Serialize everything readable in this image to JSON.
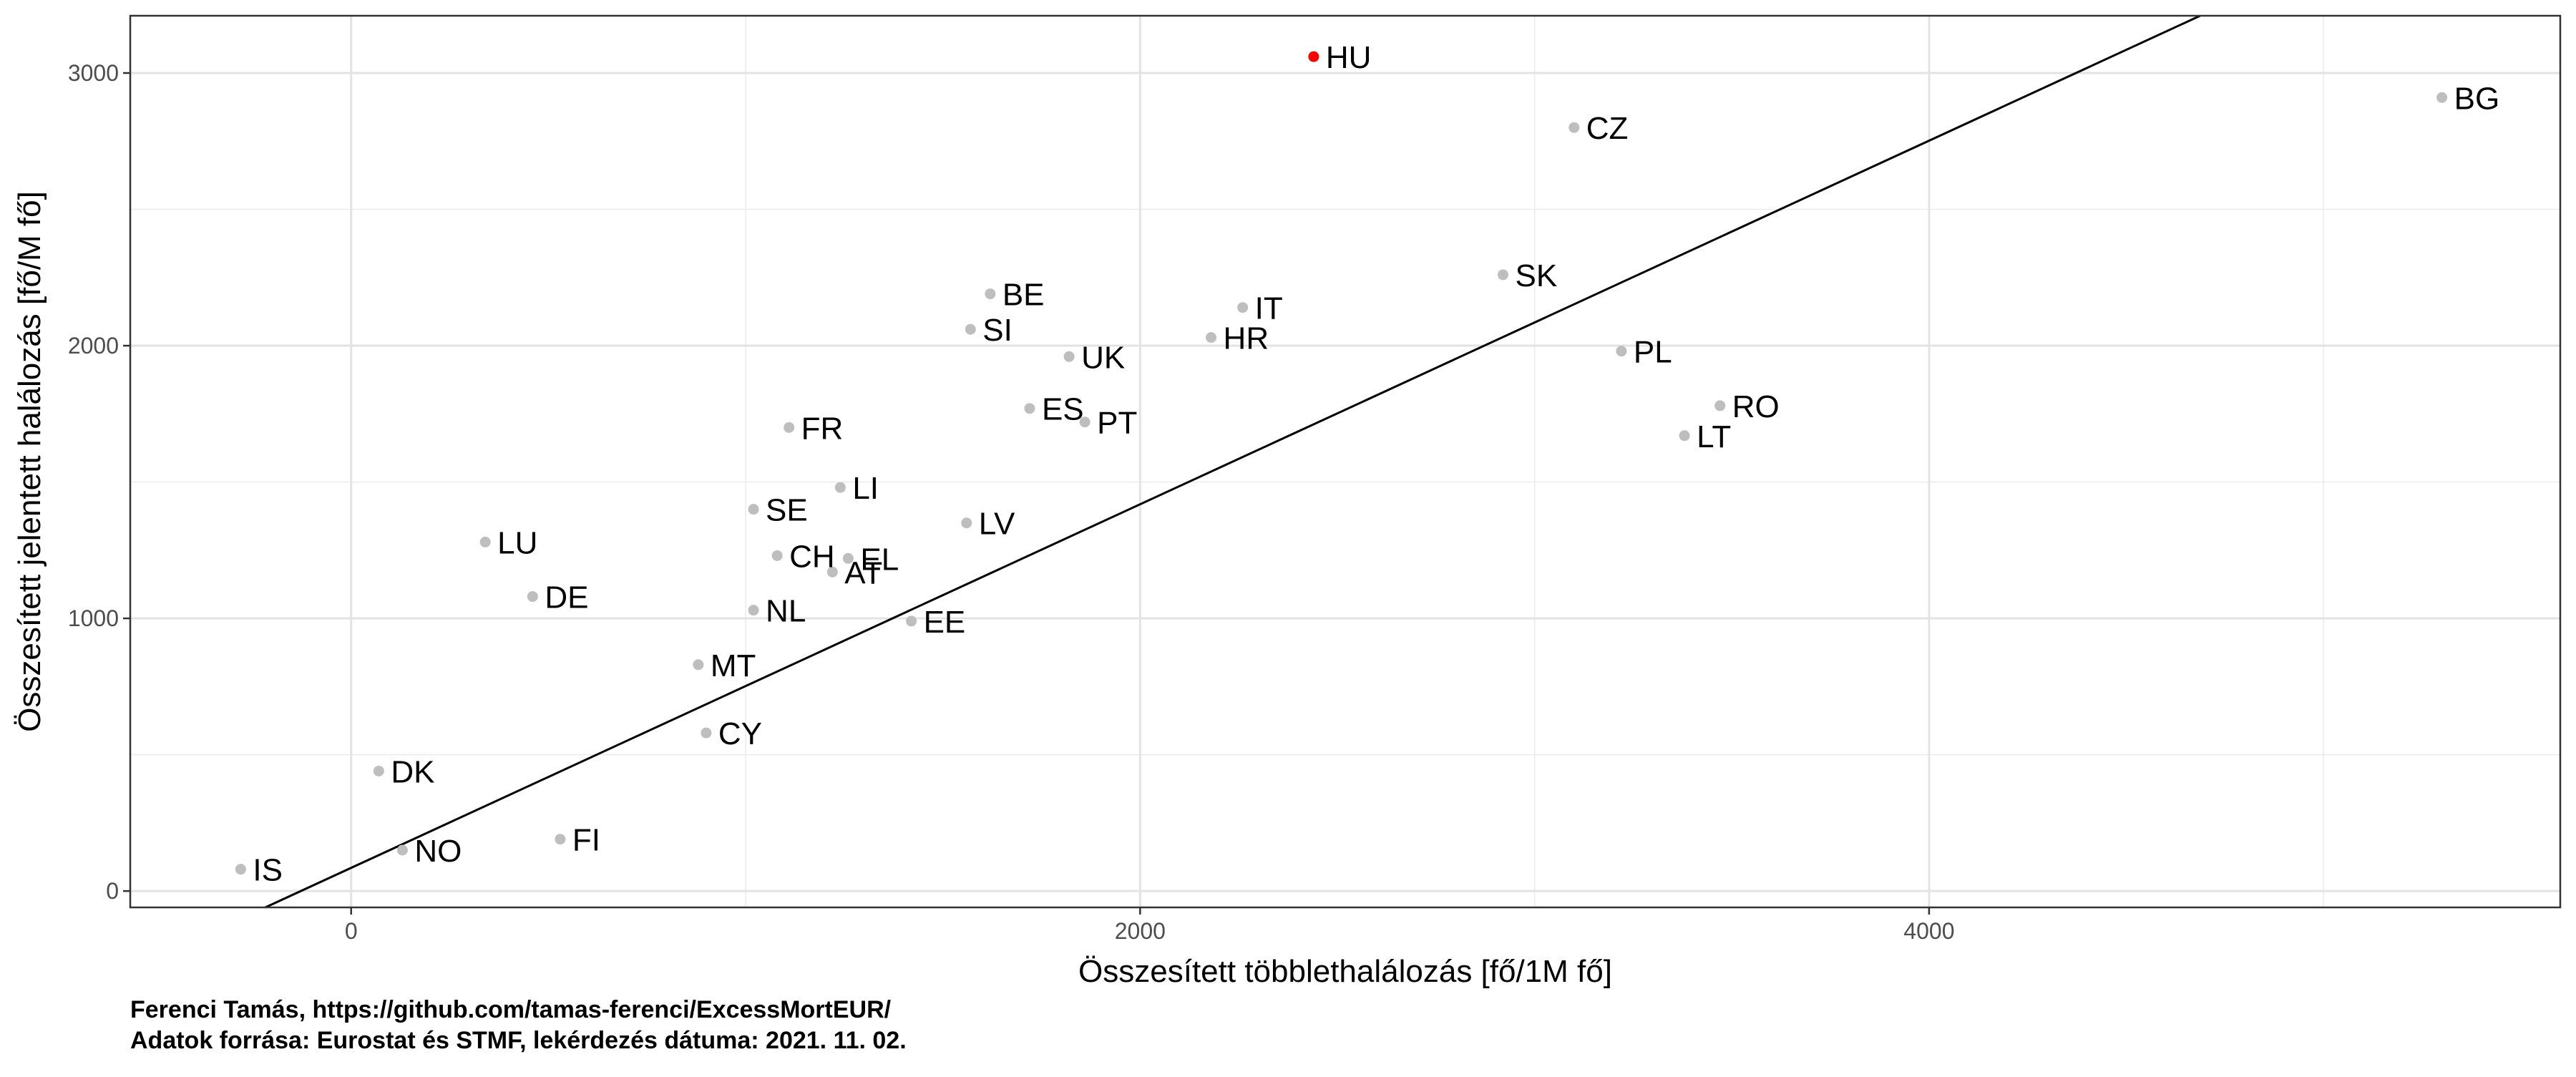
{
  "chart_data": {
    "type": "scatter",
    "xlabel": "Összesített többlethalálozás [fő/1M fő]",
    "ylabel": "Összesített jelentett halálozás [fő/M fő]",
    "xlim": [
      -560,
      5600
    ],
    "ylim": [
      -60,
      3210
    ],
    "x_ticks": [
      0,
      2000,
      4000
    ],
    "y_ticks": [
      0,
      1000,
      2000,
      3000
    ],
    "x_minor_ticks": [
      -1000,
      1000,
      3000,
      5000
    ],
    "y_minor_ticks": [
      500,
      1500,
      2500
    ],
    "grid": true,
    "fit_line": {
      "intercept": 85,
      "slope": 0.6667
    },
    "highlight_color": "#ff0000",
    "point_color": "#bebebe",
    "points": [
      {
        "label": "HU",
        "x": 2440,
        "y": 3060,
        "highlight": true
      },
      {
        "label": "BG",
        "x": 5300,
        "y": 2910
      },
      {
        "label": "CZ",
        "x": 3100,
        "y": 2800
      },
      {
        "label": "SK",
        "x": 2920,
        "y": 2260
      },
      {
        "label": "IT",
        "x": 2260,
        "y": 2140
      },
      {
        "label": "BE",
        "x": 1620,
        "y": 2190
      },
      {
        "label": "SI",
        "x": 1570,
        "y": 2060
      },
      {
        "label": "HR",
        "x": 2180,
        "y": 2030
      },
      {
        "label": "PL",
        "x": 3220,
        "y": 1980
      },
      {
        "label": "UK",
        "x": 1820,
        "y": 1960
      },
      {
        "label": "RO",
        "x": 3470,
        "y": 1780
      },
      {
        "label": "ES",
        "x": 1720,
        "y": 1770
      },
      {
        "label": "PT",
        "x": 1860,
        "y": 1720
      },
      {
        "label": "LT",
        "x": 3380,
        "y": 1670
      },
      {
        "label": "FR",
        "x": 1110,
        "y": 1700
      },
      {
        "label": "LI",
        "x": 1240,
        "y": 1480
      },
      {
        "label": "SE",
        "x": 1020,
        "y": 1400
      },
      {
        "label": "LV",
        "x": 1560,
        "y": 1350
      },
      {
        "label": "LU",
        "x": 340,
        "y": 1280
      },
      {
        "label": "CH",
        "x": 1080,
        "y": 1230
      },
      {
        "label": "EL",
        "x": 1260,
        "y": 1220
      },
      {
        "label": "AT",
        "x": 1220,
        "y": 1170
      },
      {
        "label": "DE",
        "x": 460,
        "y": 1080
      },
      {
        "label": "NL",
        "x": 1020,
        "y": 1030
      },
      {
        "label": "EE",
        "x": 1420,
        "y": 990
      },
      {
        "label": "MT",
        "x": 880,
        "y": 830
      },
      {
        "label": "CY",
        "x": 900,
        "y": 580
      },
      {
        "label": "DK",
        "x": 70,
        "y": 440
      },
      {
        "label": "FI",
        "x": 530,
        "y": 190
      },
      {
        "label": "NO",
        "x": 130,
        "y": 150
      },
      {
        "label": "IS",
        "x": -280,
        "y": 80
      }
    ]
  },
  "caption": {
    "line1": "Ferenci Tamás, https://github.com/tamas-ferenci/ExcessMortEUR/",
    "line2": "Adatok forrása: Eurostat és STMF, lekérdezés dátuma: 2021. 11. 02."
  }
}
